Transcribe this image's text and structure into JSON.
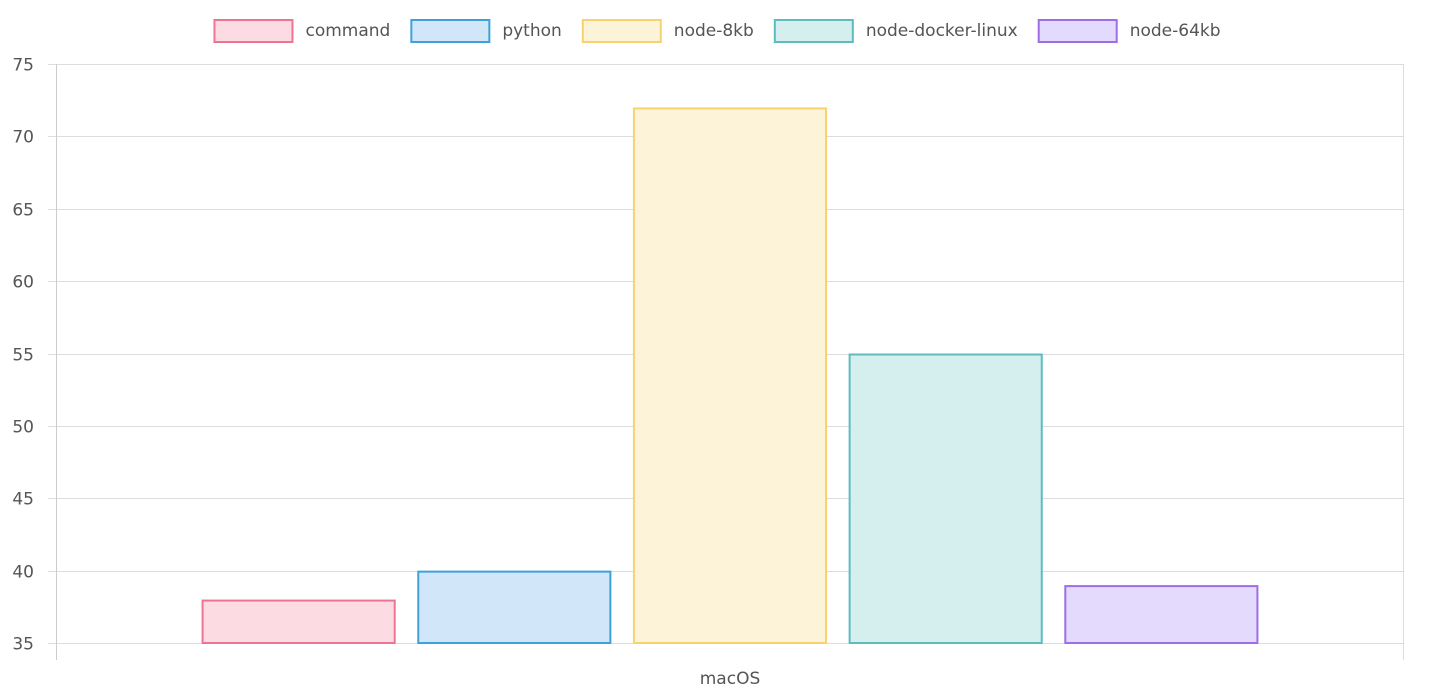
{
  "chart_data": {
    "type": "bar",
    "categories": [
      "macOS"
    ],
    "series": [
      {
        "name": "command",
        "values": [
          38
        ],
        "border": "#ec7593",
        "fill": "#fddbe3"
      },
      {
        "name": "python",
        "values": [
          40
        ],
        "border": "#3fa1d9",
        "fill": "#d1e6f9"
      },
      {
        "name": "node-8kb",
        "values": [
          72
        ],
        "border": "#f7d26f",
        "fill": "#fdf3d8"
      },
      {
        "name": "node-docker-linux",
        "values": [
          55
        ],
        "border": "#5dbdbe",
        "fill": "#d5efef"
      },
      {
        "name": "node-64kb",
        "values": [
          39
        ],
        "border": "#9d6ee4",
        "fill": "#e3dafd"
      }
    ],
    "yticks": [
      35,
      40,
      45,
      50,
      55,
      60,
      65,
      70,
      75
    ],
    "ylim": [
      35,
      75
    ],
    "grid": true,
    "legend": "top",
    "title": "",
    "xlabel": "",
    "ylabel": ""
  }
}
